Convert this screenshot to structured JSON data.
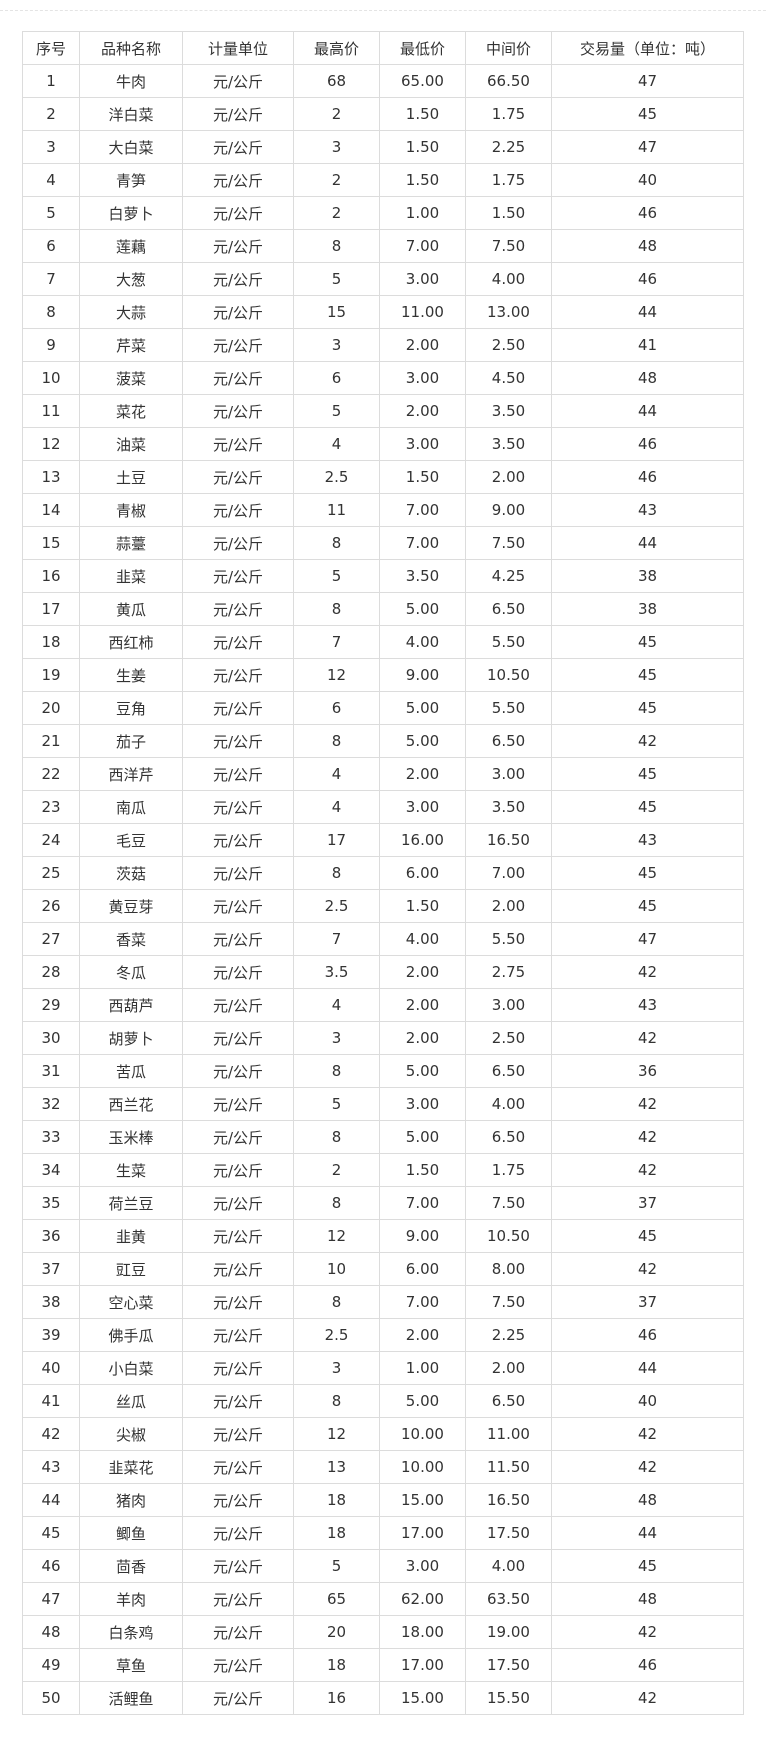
{
  "headers": [
    "序号",
    "品种名称",
    "计量单位",
    "最高价",
    "最低价",
    "中间价",
    "交易量（单位：吨）"
  ],
  "rows": [
    [
      "1",
      "牛肉",
      "元/公斤",
      "68",
      "65.00",
      "66.50",
      "47"
    ],
    [
      "2",
      "洋白菜",
      "元/公斤",
      "2",
      "1.50",
      "1.75",
      "45"
    ],
    [
      "3",
      "大白菜",
      "元/公斤",
      "3",
      "1.50",
      "2.25",
      "47"
    ],
    [
      "4",
      "青笋",
      "元/公斤",
      "2",
      "1.50",
      "1.75",
      "40"
    ],
    [
      "5",
      "白萝卜",
      "元/公斤",
      "2",
      "1.00",
      "1.50",
      "46"
    ],
    [
      "6",
      "莲藕",
      "元/公斤",
      "8",
      "7.00",
      "7.50",
      "48"
    ],
    [
      "7",
      "大葱",
      "元/公斤",
      "5",
      "3.00",
      "4.00",
      "46"
    ],
    [
      "8",
      "大蒜",
      "元/公斤",
      "15",
      "11.00",
      "13.00",
      "44"
    ],
    [
      "9",
      "芹菜",
      "元/公斤",
      "3",
      "2.00",
      "2.50",
      "41"
    ],
    [
      "10",
      "菠菜",
      "元/公斤",
      "6",
      "3.00",
      "4.50",
      "48"
    ],
    [
      "11",
      "菜花",
      "元/公斤",
      "5",
      "2.00",
      "3.50",
      "44"
    ],
    [
      "12",
      "油菜",
      "元/公斤",
      "4",
      "3.00",
      "3.50",
      "46"
    ],
    [
      "13",
      "土豆",
      "元/公斤",
      "2.5",
      "1.50",
      "2.00",
      "46"
    ],
    [
      "14",
      "青椒",
      "元/公斤",
      "11",
      "7.00",
      "9.00",
      "43"
    ],
    [
      "15",
      "蒜薹",
      "元/公斤",
      "8",
      "7.00",
      "7.50",
      "44"
    ],
    [
      "16",
      "韭菜",
      "元/公斤",
      "5",
      "3.50",
      "4.25",
      "38"
    ],
    [
      "17",
      "黄瓜",
      "元/公斤",
      "8",
      "5.00",
      "6.50",
      "38"
    ],
    [
      "18",
      "西红柿",
      "元/公斤",
      "7",
      "4.00",
      "5.50",
      "45"
    ],
    [
      "19",
      "生姜",
      "元/公斤",
      "12",
      "9.00",
      "10.50",
      "45"
    ],
    [
      "20",
      "豆角",
      "元/公斤",
      "6",
      "5.00",
      "5.50",
      "45"
    ],
    [
      "21",
      "茄子",
      "元/公斤",
      "8",
      "5.00",
      "6.50",
      "42"
    ],
    [
      "22",
      "西洋芹",
      "元/公斤",
      "4",
      "2.00",
      "3.00",
      "45"
    ],
    [
      "23",
      "南瓜",
      "元/公斤",
      "4",
      "3.00",
      "3.50",
      "45"
    ],
    [
      "24",
      "毛豆",
      "元/公斤",
      "17",
      "16.00",
      "16.50",
      "43"
    ],
    [
      "25",
      "茨菇",
      "元/公斤",
      "8",
      "6.00",
      "7.00",
      "45"
    ],
    [
      "26",
      "黄豆芽",
      "元/公斤",
      "2.5",
      "1.50",
      "2.00",
      "45"
    ],
    [
      "27",
      "香菜",
      "元/公斤",
      "7",
      "4.00",
      "5.50",
      "47"
    ],
    [
      "28",
      "冬瓜",
      "元/公斤",
      "3.5",
      "2.00",
      "2.75",
      "42"
    ],
    [
      "29",
      "西葫芦",
      "元/公斤",
      "4",
      "2.00",
      "3.00",
      "43"
    ],
    [
      "30",
      "胡萝卜",
      "元/公斤",
      "3",
      "2.00",
      "2.50",
      "42"
    ],
    [
      "31",
      "苦瓜",
      "元/公斤",
      "8",
      "5.00",
      "6.50",
      "36"
    ],
    [
      "32",
      "西兰花",
      "元/公斤",
      "5",
      "3.00",
      "4.00",
      "42"
    ],
    [
      "33",
      "玉米棒",
      "元/公斤",
      "8",
      "5.00",
      "6.50",
      "42"
    ],
    [
      "34",
      "生菜",
      "元/公斤",
      "2",
      "1.50",
      "1.75",
      "42"
    ],
    [
      "35",
      "荷兰豆",
      "元/公斤",
      "8",
      "7.00",
      "7.50",
      "37"
    ],
    [
      "36",
      "韭黄",
      "元/公斤",
      "12",
      "9.00",
      "10.50",
      "45"
    ],
    [
      "37",
      "豇豆",
      "元/公斤",
      "10",
      "6.00",
      "8.00",
      "42"
    ],
    [
      "38",
      "空心菜",
      "元/公斤",
      "8",
      "7.00",
      "7.50",
      "37"
    ],
    [
      "39",
      "佛手瓜",
      "元/公斤",
      "2.5",
      "2.00",
      "2.25",
      "46"
    ],
    [
      "40",
      "小白菜",
      "元/公斤",
      "3",
      "1.00",
      "2.00",
      "44"
    ],
    [
      "41",
      "丝瓜",
      "元/公斤",
      "8",
      "5.00",
      "6.50",
      "40"
    ],
    [
      "42",
      "尖椒",
      "元/公斤",
      "12",
      "10.00",
      "11.00",
      "42"
    ],
    [
      "43",
      "韭菜花",
      "元/公斤",
      "13",
      "10.00",
      "11.50",
      "42"
    ],
    [
      "44",
      "猪肉",
      "元/公斤",
      "18",
      "15.00",
      "16.50",
      "48"
    ],
    [
      "45",
      "鲫鱼",
      "元/公斤",
      "18",
      "17.00",
      "17.50",
      "44"
    ],
    [
      "46",
      "茴香",
      "元/公斤",
      "5",
      "3.00",
      "4.00",
      "45"
    ],
    [
      "47",
      "羊肉",
      "元/公斤",
      "65",
      "62.00",
      "63.50",
      "48"
    ],
    [
      "48",
      "白条鸡",
      "元/公斤",
      "20",
      "18.00",
      "19.00",
      "42"
    ],
    [
      "49",
      "草鱼",
      "元/公斤",
      "18",
      "17.00",
      "17.50",
      "46"
    ],
    [
      "50",
      "活鲤鱼",
      "元/公斤",
      "16",
      "15.00",
      "15.50",
      "42"
    ]
  ]
}
